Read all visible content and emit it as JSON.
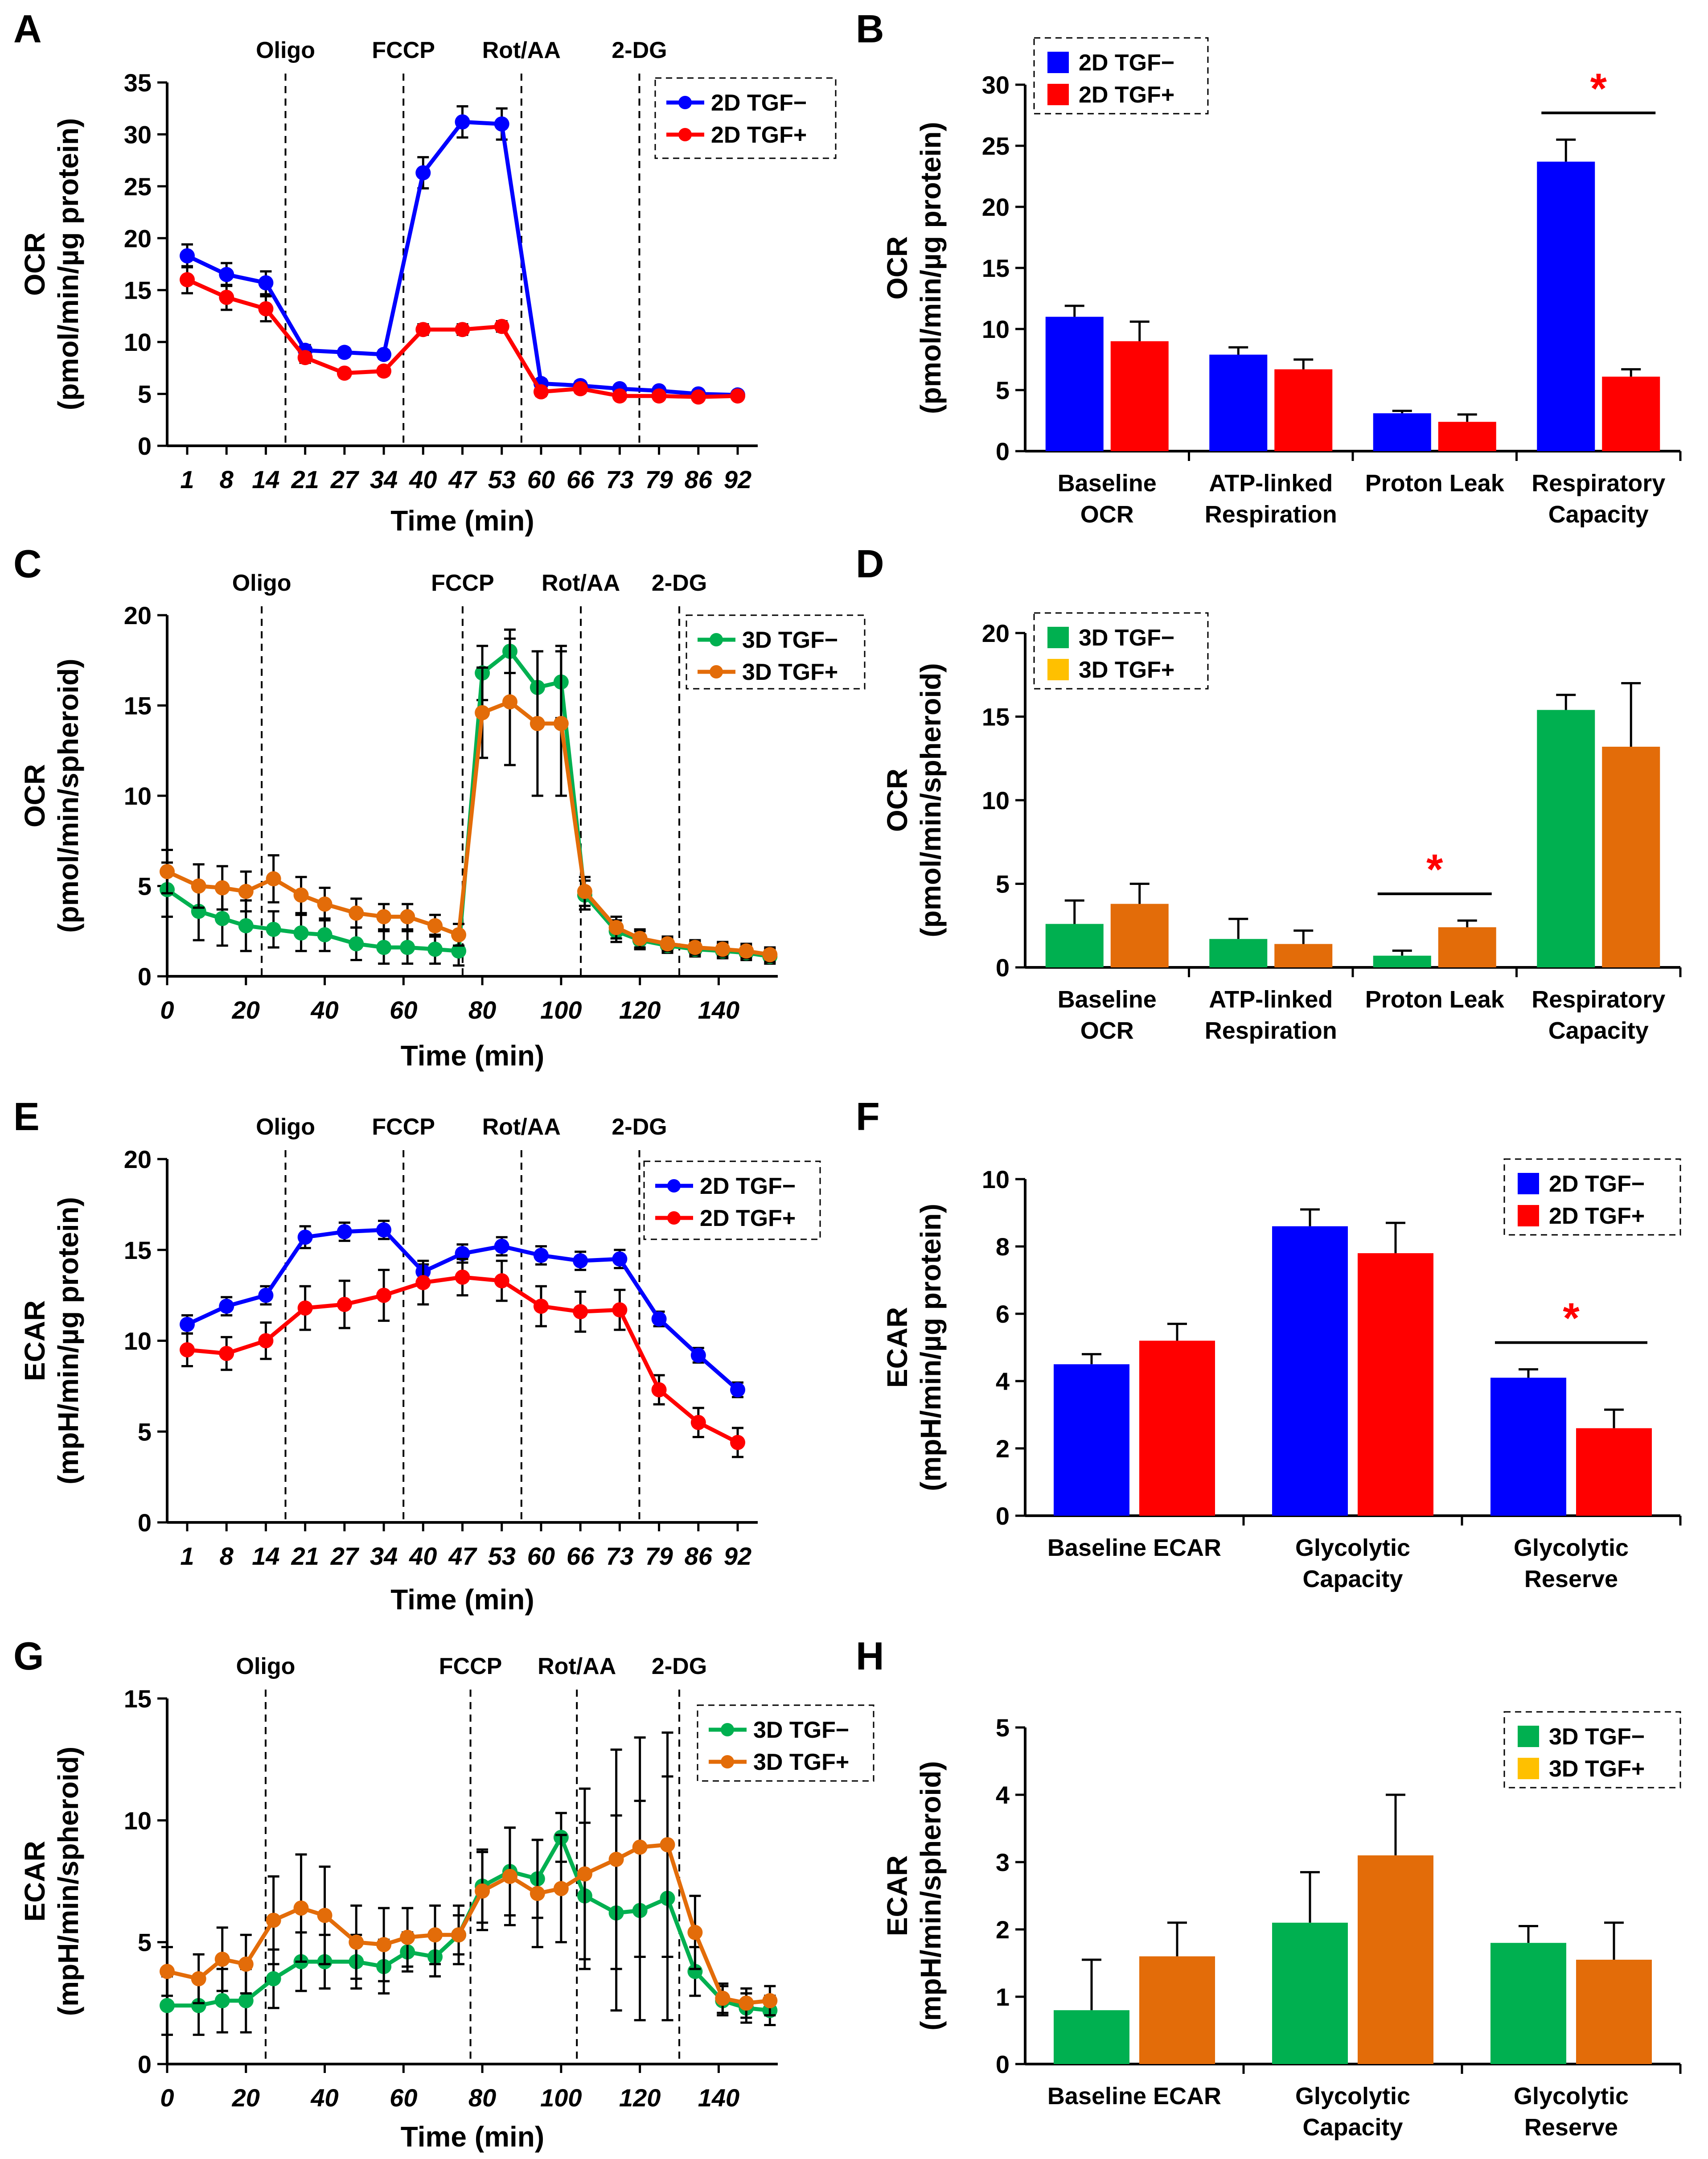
{
  "colors": {
    "tgf_minus_2d": "#0000ff",
    "tgf_plus_2d": "#ff0000",
    "tgf_minus_3d": "#00b050",
    "tgf_plus_3d": "#e36c09",
    "tgf_plus_3d_legend": "#ffc000",
    "significance": "#ff0000"
  },
  "chart_data": [
    {
      "panel": "A",
      "type": "line",
      "ylabel_line1": "OCR",
      "ylabel_line2": "(pmol/min/µg protein)",
      "xlabel": "Time (min)",
      "ylim": [
        0,
        35
      ],
      "yticks": [
        0,
        5,
        10,
        15,
        20,
        25,
        30,
        35
      ],
      "xtick_labels": [
        "1",
        "8",
        "14",
        "21",
        "27",
        "34",
        "40",
        "47",
        "53",
        "60",
        "66",
        "73",
        "79",
        "86",
        "92"
      ],
      "injections": [
        "Oligo",
        "FCCP",
        "Rot/AA",
        "2-DG"
      ],
      "series": [
        {
          "name": "2D TGF−",
          "values": [
            18.3,
            16.5,
            15.7,
            9.2,
            9.0,
            8.8,
            26.3,
            31.2,
            31.0,
            6.0,
            5.8,
            5.5,
            5.3,
            5.0,
            4.9
          ],
          "err": [
            1.1,
            1.1,
            1.1,
            0.5,
            0.4,
            0.4,
            1.5,
            1.5,
            1.5,
            0.4,
            0.4,
            0.3,
            0.3,
            0.3,
            0.3
          ]
        },
        {
          "name": "2D TGF+",
          "values": [
            16.0,
            14.3,
            13.2,
            8.5,
            7.0,
            7.2,
            11.2,
            11.2,
            11.5,
            5.2,
            5.5,
            4.8,
            4.8,
            4.7,
            4.8
          ],
          "err": [
            1.3,
            1.2,
            1.2,
            0.5,
            0.4,
            0.4,
            0.5,
            0.5,
            0.5,
            0.4,
            0.4,
            0.3,
            0.3,
            0.3,
            0.3
          ]
        }
      ],
      "legend": [
        "2D TGF−",
        "2D TGF+"
      ]
    },
    {
      "panel": "B",
      "type": "bar",
      "ylabel_line1": "OCR",
      "ylabel_line2": "(pmol/min/µg protein)",
      "ylim": [
        0,
        30
      ],
      "yticks": [
        0,
        5,
        10,
        15,
        20,
        25,
        30
      ],
      "categories": [
        [
          "Baseline",
          "OCR"
        ],
        [
          "ATP-linked",
          "Respiration"
        ],
        [
          "Proton Leak"
        ],
        [
          "Respiratory",
          "Capacity"
        ]
      ],
      "series": [
        {
          "name": "2D TGF−",
          "values": [
            11.0,
            7.9,
            3.1,
            23.7
          ],
          "err": [
            0.9,
            0.6,
            0.2,
            1.8
          ]
        },
        {
          "name": "2D TGF+",
          "values": [
            9.0,
            6.7,
            2.4,
            6.1
          ],
          "err": [
            1.6,
            0.8,
            0.6,
            0.6
          ]
        }
      ],
      "legend": [
        "2D TGF−",
        "2D TGF+"
      ],
      "significance": [
        {
          "category": 3,
          "label": "*"
        }
      ]
    },
    {
      "panel": "C",
      "type": "line",
      "ylabel_line1": "OCR",
      "ylabel_line2": "(pmol/min/spheroid)",
      "xlabel": "Time (min)",
      "xlim": [
        0,
        155
      ],
      "xticks": [
        0,
        20,
        40,
        60,
        80,
        100,
        120,
        140
      ],
      "ylim": [
        0,
        20
      ],
      "yticks": [
        0,
        5,
        10,
        15,
        20
      ],
      "injections": [
        "Oligo",
        "FCCP",
        "Rot/AA",
        "2-DG"
      ],
      "injection_times": [
        24,
        75,
        105,
        130
      ],
      "x": [
        0,
        8,
        14,
        20,
        27,
        34,
        40,
        48,
        55,
        61,
        68,
        74,
        80,
        87,
        94,
        100,
        106,
        114,
        120,
        127,
        134,
        141,
        147,
        153
      ],
      "series": [
        {
          "name": "3D TGF−",
          "values": [
            4.8,
            3.6,
            3.2,
            2.8,
            2.6,
            2.4,
            2.3,
            1.8,
            1.6,
            1.6,
            1.5,
            1.4,
            16.8,
            18.0,
            16.0,
            16.3,
            4.5,
            2.5,
            2.0,
            1.7,
            1.5,
            1.4,
            1.3,
            1.1
          ],
          "err": [
            1.5,
            1.6,
            1.5,
            1.4,
            1.0,
            1.0,
            0.9,
            0.9,
            0.9,
            0.9,
            0.8,
            0.8,
            1.5,
            1.2,
            2.0,
            2.0,
            0.8,
            0.6,
            0.5,
            0.4,
            0.4,
            0.4,
            0.4,
            0.4
          ]
        },
        {
          "name": "3D TGF+",
          "values": [
            5.8,
            5.0,
            4.9,
            4.7,
            5.4,
            4.5,
            4.0,
            3.5,
            3.3,
            3.3,
            2.8,
            2.3,
            14.6,
            15.2,
            14.0,
            14.0,
            4.7,
            2.7,
            2.1,
            1.8,
            1.6,
            1.5,
            1.4,
            1.2
          ],
          "err": [
            1.2,
            1.2,
            1.2,
            1.1,
            1.3,
            1.0,
            0.9,
            0.8,
            0.7,
            0.7,
            0.6,
            0.6,
            2.5,
            3.5,
            4.0,
            4.0,
            0.8,
            0.6,
            0.5,
            0.4,
            0.4,
            0.4,
            0.4,
            0.4
          ]
        }
      ],
      "legend": [
        "3D TGF−",
        "3D TGF+"
      ]
    },
    {
      "panel": "D",
      "type": "bar",
      "ylabel_line1": "OCR",
      "ylabel_line2": "(pmol/min/spheroid)",
      "ylim": [
        0,
        20
      ],
      "yticks": [
        0,
        5,
        10,
        15,
        20
      ],
      "categories": [
        [
          "Baseline",
          "OCR"
        ],
        [
          "ATP-linked",
          "Respiration"
        ],
        [
          "Proton Leak"
        ],
        [
          "Respiratory",
          "Capacity"
        ]
      ],
      "series": [
        {
          "name": "3D TGF−",
          "values": [
            2.6,
            1.7,
            0.7,
            15.4
          ],
          "err": [
            1.4,
            1.2,
            0.3,
            0.9
          ]
        },
        {
          "name": "3D TGF+",
          "values": [
            3.8,
            1.4,
            2.4,
            13.2
          ],
          "err": [
            1.2,
            0.8,
            0.4,
            3.8
          ]
        }
      ],
      "legend": [
        "3D TGF−",
        "3D TGF+"
      ],
      "significance": [
        {
          "category": 2,
          "label": "*"
        }
      ]
    },
    {
      "panel": "E",
      "type": "line",
      "ylabel_line1": "ECAR",
      "ylabel_line2": "(mpH/min/µg protein)",
      "xlabel": "Time (min)",
      "ylim": [
        0,
        20
      ],
      "yticks": [
        0,
        5,
        10,
        15,
        20
      ],
      "xtick_labels": [
        "1",
        "8",
        "14",
        "21",
        "27",
        "34",
        "40",
        "47",
        "53",
        "60",
        "66",
        "73",
        "79",
        "86",
        "92"
      ],
      "injections": [
        "Oligo",
        "FCCP",
        "Rot/AA",
        "2-DG"
      ],
      "series": [
        {
          "name": "2D TGF−",
          "values": [
            10.9,
            11.9,
            12.5,
            15.7,
            16.0,
            16.1,
            13.8,
            14.8,
            15.2,
            14.7,
            14.4,
            14.5,
            11.2,
            9.2,
            7.3
          ],
          "err": [
            0.5,
            0.5,
            0.5,
            0.6,
            0.5,
            0.5,
            0.4,
            0.5,
            0.5,
            0.5,
            0.5,
            0.5,
            0.4,
            0.4,
            0.4
          ]
        },
        {
          "name": "2D TGF+",
          "values": [
            9.5,
            9.3,
            10.0,
            11.8,
            12.0,
            12.5,
            13.2,
            13.5,
            13.3,
            11.9,
            11.6,
            11.7,
            7.3,
            5.5,
            4.4
          ],
          "err": [
            0.9,
            0.9,
            1.0,
            1.2,
            1.3,
            1.4,
            1.2,
            1.0,
            1.1,
            1.1,
            1.1,
            1.1,
            0.8,
            0.8,
            0.8
          ]
        }
      ],
      "legend": [
        "2D TGF−",
        "2D TGF+"
      ]
    },
    {
      "panel": "F",
      "type": "bar",
      "ylabel_line1": "ECAR",
      "ylabel_line2": "(mpH/min/µg protein)",
      "ylim": [
        0,
        10
      ],
      "yticks": [
        0,
        2,
        4,
        6,
        8,
        10
      ],
      "categories": [
        [
          "Baseline ECAR"
        ],
        [
          "Glycolytic",
          "Capacity"
        ],
        [
          "Glycolytic",
          "Reserve"
        ]
      ],
      "series": [
        {
          "name": "2D TGF−",
          "values": [
            4.5,
            8.6,
            4.1
          ],
          "err": [
            0.3,
            0.5,
            0.25
          ]
        },
        {
          "name": "2D TGF+",
          "values": [
            5.2,
            7.8,
            2.6
          ],
          "err": [
            0.5,
            0.9,
            0.55
          ]
        }
      ],
      "legend": [
        "2D TGF−",
        "2D TGF+"
      ],
      "significance": [
        {
          "category": 2,
          "label": "*"
        }
      ]
    },
    {
      "panel": "G",
      "type": "line",
      "ylabel_line1": "ECAR",
      "ylabel_line2": "(mpH/min/spheroid)",
      "xlabel": "Time (min)",
      "xlim": [
        0,
        155
      ],
      "xticks": [
        0,
        20,
        40,
        60,
        80,
        100,
        120,
        140
      ],
      "ylim": [
        0,
        15
      ],
      "yticks": [
        0,
        5,
        10,
        15
      ],
      "injections": [
        "Oligo",
        "FCCP",
        "Rot/AA",
        "2-DG"
      ],
      "injection_times": [
        25,
        77,
        104,
        130
      ],
      "x": [
        0,
        8,
        14,
        20,
        27,
        34,
        40,
        48,
        55,
        61,
        68,
        74,
        80,
        87,
        94,
        100,
        106,
        114,
        120,
        127,
        134,
        141,
        147,
        153
      ],
      "series": [
        {
          "name": "3D TGF−",
          "values": [
            2.4,
            2.4,
            2.6,
            2.6,
            3.5,
            4.2,
            4.2,
            4.2,
            4.0,
            4.6,
            4.4,
            5.3,
            7.3,
            7.9,
            7.6,
            9.3,
            6.9,
            6.2,
            6.3,
            6.8,
            3.8,
            2.6,
            2.3,
            2.2
          ],
          "err": [
            1.2,
            1.2,
            1.3,
            1.3,
            1.2,
            1.2,
            1.1,
            1.1,
            1.1,
            0.8,
            0.8,
            0.8,
            1.5,
            1.8,
            1.6,
            1.0,
            3.0,
            4.0,
            4.5,
            5.0,
            1.0,
            0.6,
            0.6,
            0.6
          ]
        },
        {
          "name": "3D TGF+",
          "values": [
            3.8,
            3.5,
            4.3,
            4.1,
            5.9,
            6.4,
            6.1,
            5.0,
            4.9,
            5.2,
            5.3,
            5.3,
            7.1,
            7.7,
            7.0,
            7.2,
            7.8,
            8.4,
            8.9,
            9.0,
            5.4,
            2.7,
            2.5,
            2.6
          ],
          "err": [
            1.0,
            1.0,
            1.3,
            1.2,
            1.8,
            2.2,
            2.0,
            1.5,
            1.5,
            1.2,
            1.2,
            1.2,
            1.6,
            2.0,
            2.2,
            2.2,
            3.5,
            4.5,
            4.5,
            4.6,
            1.5,
            0.6,
            0.6,
            0.6
          ]
        }
      ],
      "legend": [
        "3D TGF−",
        "3D TGF+"
      ]
    },
    {
      "panel": "H",
      "type": "bar",
      "ylabel_line1": "ECAR",
      "ylabel_line2": "(mpH/min/spheroid)",
      "ylim": [
        0,
        5
      ],
      "yticks": [
        0,
        1,
        2,
        3,
        4,
        5
      ],
      "categories": [
        [
          "Baseline ECAR"
        ],
        [
          "Glycolytic",
          "Capacity"
        ],
        [
          "Glycolytic",
          "Reserve"
        ]
      ],
      "series": [
        {
          "name": "3D TGF−",
          "values": [
            0.8,
            2.1,
            1.8
          ],
          "err": [
            0.75,
            0.75,
            0.25
          ]
        },
        {
          "name": "3D TGF+",
          "values": [
            1.6,
            3.1,
            1.55
          ],
          "err": [
            0.5,
            0.9,
            0.55
          ]
        }
      ],
      "legend": [
        "3D TGF−",
        "3D TGF+"
      ]
    }
  ]
}
